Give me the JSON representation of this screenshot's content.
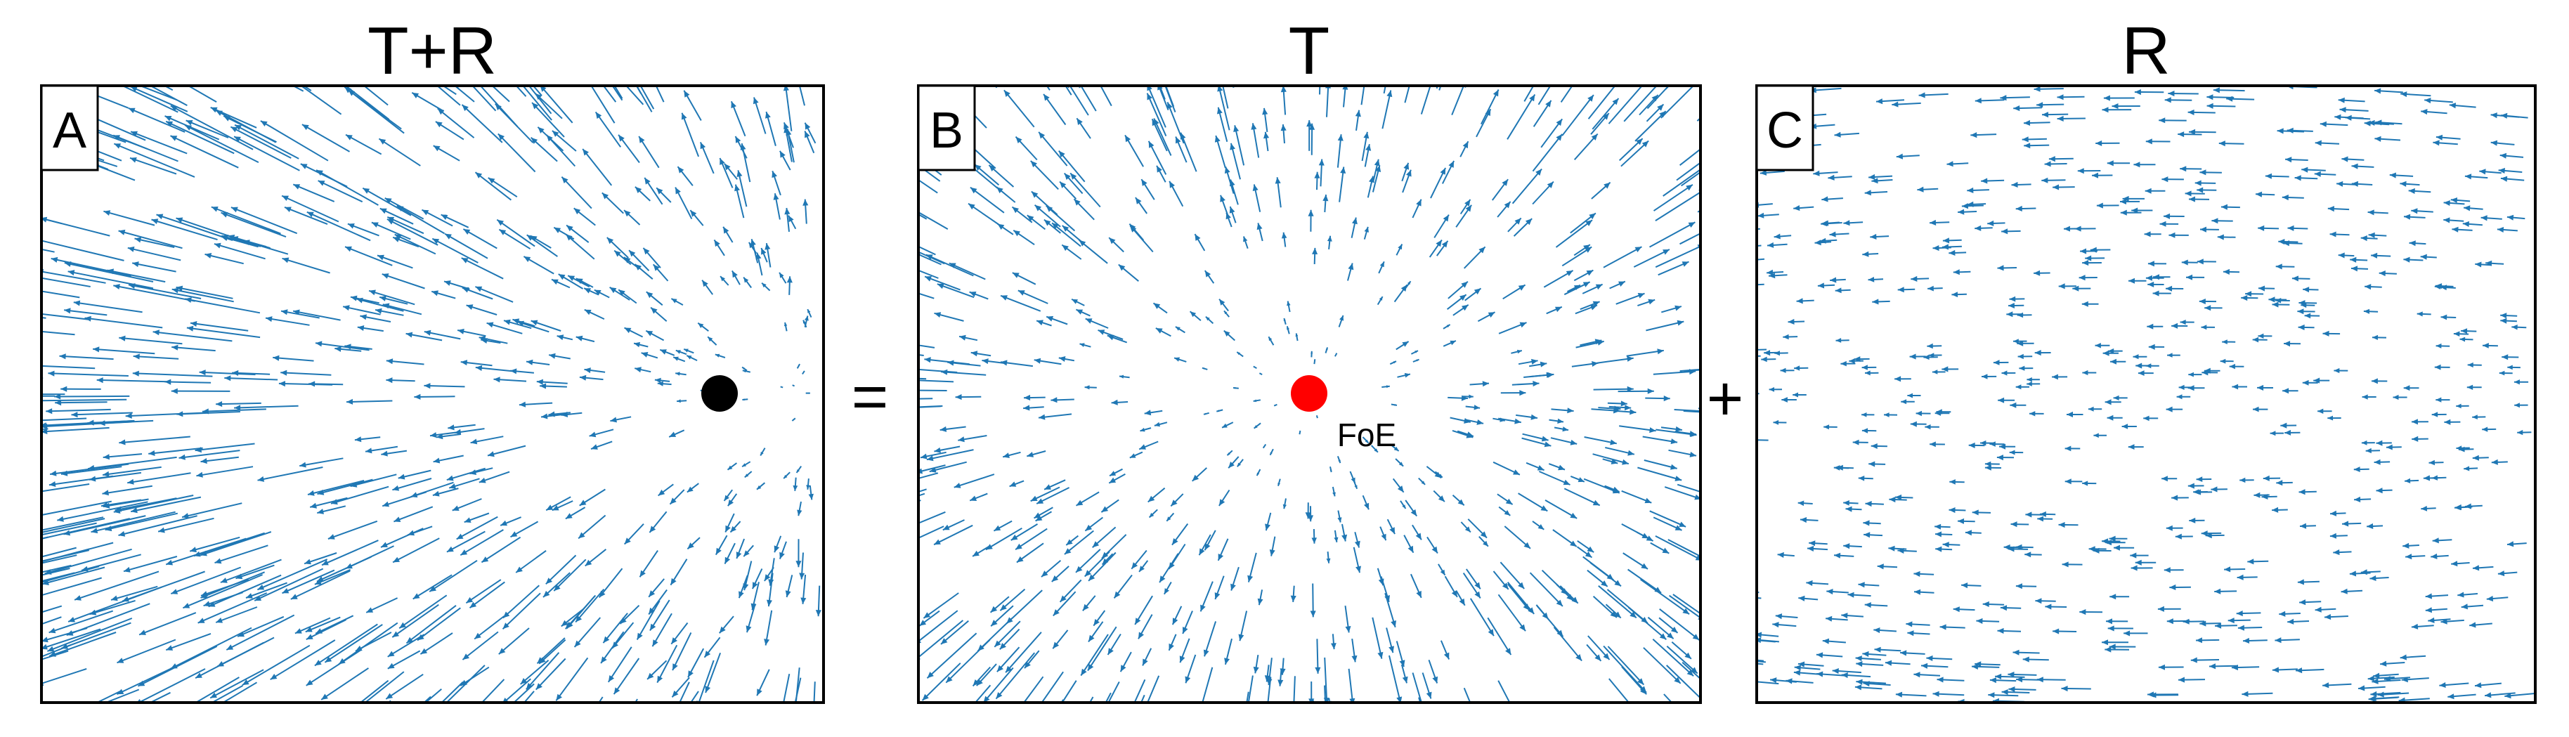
{
  "panels": [
    {
      "letter": "A",
      "title": "T+R"
    },
    {
      "letter": "B",
      "title": "T"
    },
    {
      "letter": "C",
      "title": "R"
    }
  ],
  "operators": [
    "=",
    "+"
  ],
  "annotation": "FoE"
}
